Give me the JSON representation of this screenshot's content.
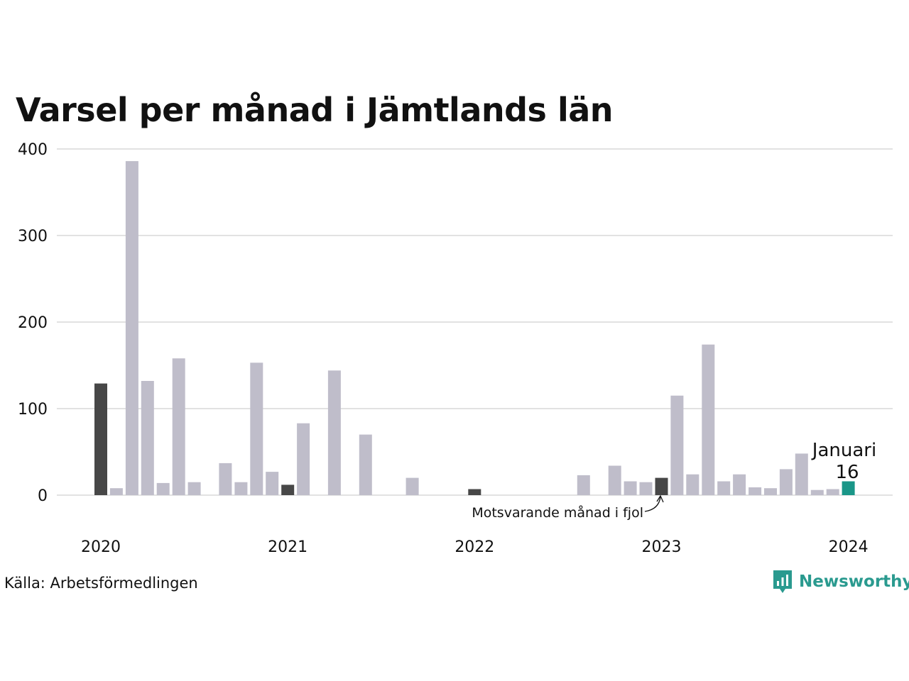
{
  "title": "Varsel per månad i Jämtlands län",
  "source": "Källa: Arbetsförmedlingen",
  "brand": {
    "name": "Newsworthy",
    "color": "#2a9a8f",
    "icon": "bar-chart-badge-icon"
  },
  "colors": {
    "bar": "#bfbdca",
    "same_month": "#474747",
    "highlight": "#1a9688",
    "grid": "#e2e2e2"
  },
  "annotations": {
    "same_month_last_year": "Motsvarande månad i fjol",
    "highlight_label": "Januari",
    "highlight_value": "16"
  },
  "chart_data": {
    "type": "bar",
    "title": "Varsel per månad i Jämtlands län",
    "xlabel": "",
    "ylabel": "",
    "ylim": [
      0,
      400
    ],
    "yticks": [
      0,
      100,
      200,
      300,
      400
    ],
    "x_tick_labels": [
      "2020",
      "2021",
      "2022",
      "2023",
      "2024"
    ],
    "grid": true,
    "categories": [
      "2020-01",
      "2020-02",
      "2020-03",
      "2020-04",
      "2020-05",
      "2020-06",
      "2020-07",
      "2020-08",
      "2020-09",
      "2020-10",
      "2020-11",
      "2020-12",
      "2021-01",
      "2021-02",
      "2021-03",
      "2021-04",
      "2021-05",
      "2021-06",
      "2021-07",
      "2021-08",
      "2021-09",
      "2021-10",
      "2021-11",
      "2021-12",
      "2022-01",
      "2022-02",
      "2022-03",
      "2022-04",
      "2022-05",
      "2022-06",
      "2022-07",
      "2022-08",
      "2022-09",
      "2022-10",
      "2022-11",
      "2022-12",
      "2023-01",
      "2023-02",
      "2023-03",
      "2023-04",
      "2023-05",
      "2023-06",
      "2023-07",
      "2023-08",
      "2023-09",
      "2023-10",
      "2023-11",
      "2023-12",
      "2024-01"
    ],
    "values": [
      129,
      8,
      386,
      132,
      14,
      158,
      15,
      0,
      37,
      15,
      153,
      27,
      12,
      83,
      0,
      144,
      0,
      70,
      0,
      0,
      20,
      0,
      0,
      0,
      7,
      0,
      0,
      0,
      0,
      0,
      0,
      23,
      0,
      34,
      16,
      15,
      20,
      115,
      24,
      174,
      16,
      24,
      9,
      8,
      30,
      48,
      6,
      7,
      16
    ],
    "same_month_indices": [
      0,
      12,
      24,
      36
    ],
    "highlight_index": 48
  }
}
